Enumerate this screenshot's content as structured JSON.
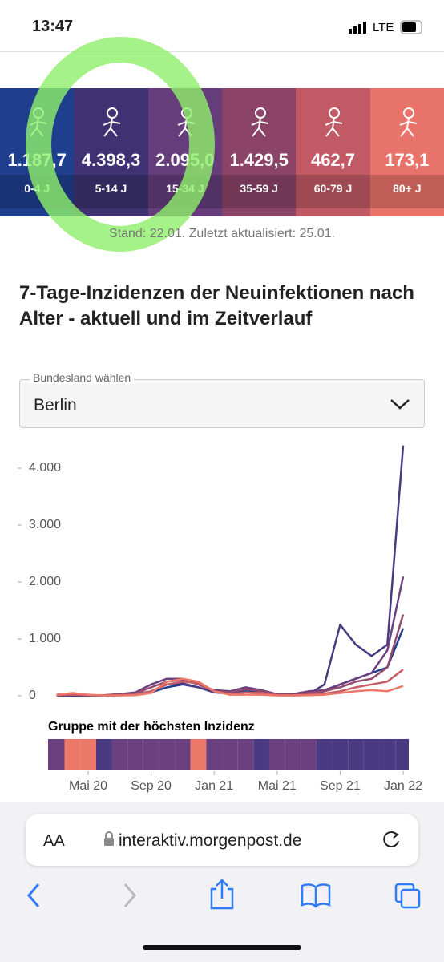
{
  "status_bar": {
    "time": "13:47",
    "network": "LTE"
  },
  "age_tiles": [
    {
      "value": "1.187,7",
      "label": "0-4 J",
      "color": "#1f3f8e"
    },
    {
      "value": "4.398,3",
      "label": "5-14 J",
      "color": "#3e3272"
    },
    {
      "value": "2.095,0",
      "label": "15-34 J",
      "color": "#653d7b"
    },
    {
      "value": "1.429,5",
      "label": "35-59 J",
      "color": "#8b4468"
    },
    {
      "value": "462,7",
      "label": "60-79 J",
      "color": "#c25a65"
    },
    {
      "value": "173,1",
      "label": "80+ J",
      "color": "#e8736a"
    }
  ],
  "stand": "Stand: 22.01. Zuletzt aktualisiert: 25.01.",
  "dropdown": {
    "label": "Bundesland wählen",
    "value": "Berlin"
  },
  "chart_data": {
    "type": "line",
    "title": "7-Tage-Inzidenzen der Neuinfektionen nach Alter - aktuell und im Zeitverlauf",
    "strip_title": "Gruppe mit der höchsten Inzidenz",
    "x": [
      "2020-03",
      "2020-04",
      "2020-05",
      "2020-06",
      "2020-07",
      "2020-08",
      "2020-09",
      "2020-10",
      "2020-11",
      "2020-12",
      "2021-01",
      "2021-02",
      "2021-03",
      "2021-04",
      "2021-05",
      "2021-06",
      "2021-07",
      "2021-08",
      "2021-09",
      "2021-10",
      "2021-11",
      "2021-12",
      "2022-01"
    ],
    "xticks": [
      {
        "value": "2020-05",
        "label": "Mai 20"
      },
      {
        "value": "2020-09",
        "label": "Sep 20"
      },
      {
        "value": "2021-01",
        "label": "Jan 21"
      },
      {
        "value": "2021-05",
        "label": "Mai 21"
      },
      {
        "value": "2021-09",
        "label": "Sep 21"
      },
      {
        "value": "2022-01",
        "label": "Jan 22"
      }
    ],
    "ylim": [
      0,
      4400
    ],
    "yticks": [
      0,
      {
        "value": 1000,
        "label": "1.000"
      },
      {
        "value": 2000,
        "label": "2.000"
      },
      {
        "value": 3000,
        "label": "3.000"
      },
      {
        "value": 4000,
        "label": "4.000"
      }
    ],
    "series": [
      {
        "name": "0-4 J",
        "color": "#1f3f8e",
        "values": [
          5,
          5,
          5,
          5,
          10,
          20,
          60,
          150,
          200,
          150,
          60,
          40,
          80,
          60,
          20,
          10,
          20,
          80,
          200,
          300,
          400,
          500,
          1187.7
        ]
      },
      {
        "name": "5-14 J",
        "color": "#4a3a82",
        "values": [
          5,
          5,
          5,
          10,
          15,
          30,
          80,
          200,
          220,
          150,
          60,
          60,
          120,
          100,
          20,
          10,
          30,
          200,
          1250,
          900,
          700,
          900,
          4398.3
        ]
      },
      {
        "name": "15-34 J",
        "color": "#6b4080",
        "values": [
          20,
          30,
          10,
          10,
          30,
          60,
          200,
          300,
          300,
          200,
          100,
          80,
          150,
          100,
          30,
          30,
          80,
          100,
          200,
          300,
          400,
          800,
          2095.0
        ]
      },
      {
        "name": "35-59 J",
        "color": "#944a6c",
        "values": [
          20,
          30,
          10,
          10,
          20,
          40,
          150,
          250,
          280,
          200,
          80,
          60,
          120,
          80,
          20,
          20,
          50,
          80,
          150,
          250,
          300,
          500,
          1429.5
        ]
      },
      {
        "name": "60-79 J",
        "color": "#c65c66",
        "values": [
          10,
          20,
          10,
          5,
          10,
          20,
          80,
          200,
          250,
          220,
          80,
          30,
          60,
          50,
          10,
          5,
          20,
          40,
          80,
          150,
          200,
          250,
          462.7
        ]
      },
      {
        "name": "80+ J",
        "color": "#ec7868",
        "values": [
          20,
          50,
          20,
          5,
          5,
          10,
          50,
          250,
          300,
          250,
          80,
          20,
          20,
          20,
          5,
          5,
          10,
          20,
          50,
          80,
          100,
          80,
          173.1
        ]
      }
    ]
  },
  "browser": {
    "text_size": "AA",
    "url": "interaktiv.morgenpost.de"
  }
}
